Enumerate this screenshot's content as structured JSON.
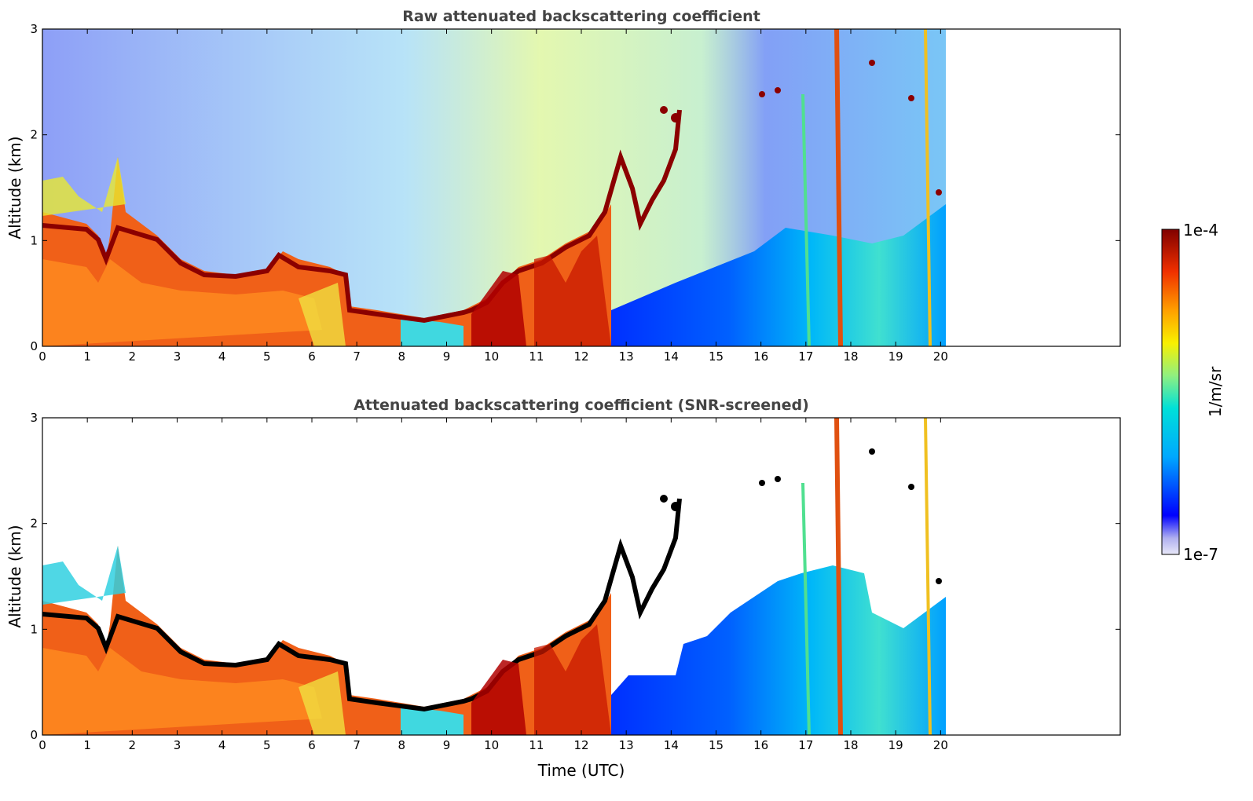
{
  "chart_data": [
    {
      "type": "heatmap",
      "title": "Raw attenuated backscattering coefficient",
      "xlabel": "",
      "ylabel": "Altitude (km)",
      "xlim": [
        0,
        24
      ],
      "ylim": [
        0,
        3
      ],
      "x_ticks": [
        "0",
        "1",
        "2",
        "3",
        "4",
        "5",
        "6",
        "7",
        "8",
        "9",
        "10",
        "11",
        "12",
        "13",
        "14",
        "15",
        "16",
        "17",
        "18",
        "19",
        "20"
      ],
      "y_ticks": [
        "0",
        "1",
        "2",
        "3"
      ],
      "data_extent_hours": [
        0,
        20.1
      ],
      "approx_cloud_base_km": [
        {
          "t": 0,
          "h": 1.15
        },
        {
          "t": 1,
          "h": 1.1
        },
        {
          "t": 1.4,
          "h": 0.85
        },
        {
          "t": 1.6,
          "h": 1.6
        },
        {
          "t": 2,
          "h": 1.05
        },
        {
          "t": 3,
          "h": 0.75
        },
        {
          "t": 4,
          "h": 0.65
        },
        {
          "t": 5,
          "h": 0.75
        },
        {
          "t": 6,
          "h": 0.7
        },
        {
          "t": 7,
          "h": 0.3
        },
        {
          "t": 8,
          "h": 0.3
        },
        {
          "t": 9,
          "h": 0.35
        },
        {
          "t": 10,
          "h": 0.4
        },
        {
          "t": 11,
          "h": 0.6
        },
        {
          "t": 12,
          "h": 1.0
        },
        {
          "t": 12.8,
          "h": 1.6
        },
        {
          "t": 13.5,
          "h": 1.3
        },
        {
          "t": 14,
          "h": 2.0
        },
        {
          "t": 17.5,
          "h": 1.7
        },
        {
          "t": 20,
          "h": 1.45
        }
      ]
    },
    {
      "type": "heatmap",
      "title": "Attenuated backscattering coefficient (SNR-screened)",
      "xlabel": "Time (UTC)",
      "ylabel": "Altitude (km)",
      "xlim": [
        0,
        24
      ],
      "ylim": [
        0,
        3
      ],
      "x_ticks": [
        "0",
        "1",
        "2",
        "3",
        "4",
        "5",
        "6",
        "7",
        "8",
        "9",
        "10",
        "11",
        "12",
        "13",
        "14",
        "15",
        "16",
        "17",
        "18",
        "19",
        "20"
      ],
      "y_ticks": [
        "0",
        "1",
        "2",
        "3"
      ],
      "data_extent_hours": [
        0,
        20.1
      ]
    }
  ],
  "colorbar": {
    "label": "1/m/sr",
    "max_label": "1e-4",
    "min_label": "1e-7",
    "scale": "log",
    "colormap": [
      "#e8e8f8",
      "#0000ff",
      "#00aaff",
      "#00e8d0",
      "#a8f070",
      "#f8f000",
      "#ff8000",
      "#ee2000",
      "#800000"
    ]
  }
}
